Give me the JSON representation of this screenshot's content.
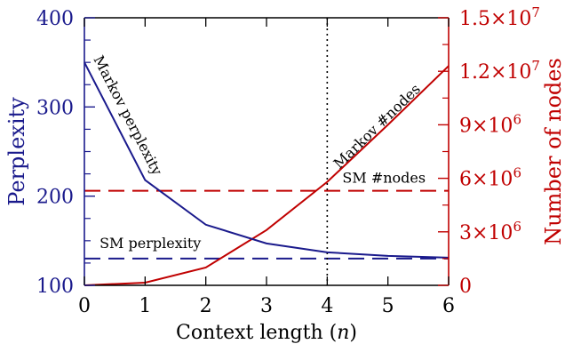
{
  "chart_data": {
    "type": "line",
    "xlabel": "Context length (n)",
    "x_ticks": [
      0,
      1,
      2,
      3,
      4,
      5,
      6
    ],
    "xlim": [
      0,
      6
    ],
    "left_axis": {
      "label": "Perplexity",
      "ylim": [
        100,
        400
      ],
      "ticks": [
        100,
        200,
        300,
        400
      ],
      "color": "#1a1a8c"
    },
    "right_axis": {
      "label": "Number of nodes",
      "ylim": [
        0,
        15000000
      ],
      "ticks": [
        {
          "value": 0,
          "mant": "0",
          "exp": ""
        },
        {
          "value": 3000000,
          "mant": "3×10",
          "exp": "6"
        },
        {
          "value": 6000000,
          "mant": "6×10",
          "exp": "6"
        },
        {
          "value": 9000000,
          "mant": "9×10",
          "exp": "6"
        },
        {
          "value": 12000000,
          "mant": "1.2×10",
          "exp": "7"
        },
        {
          "value": 15000000,
          "mant": "1.5×10",
          "exp": "7"
        }
      ],
      "color": "#c00000"
    },
    "series": [
      {
        "name": "Markov perplexity",
        "axis": "left",
        "style": "solid",
        "color": "#1a1a8c",
        "x": [
          0,
          1,
          2,
          3,
          4,
          5,
          6
        ],
        "y": [
          350,
          218,
          168,
          147,
          137,
          133,
          131
        ]
      },
      {
        "name": "Markov #nodes",
        "axis": "right",
        "style": "solid",
        "color": "#c00000",
        "x": [
          0,
          1,
          2,
          3,
          4,
          5,
          6
        ],
        "y": [
          0,
          150000,
          1000000,
          3100000,
          5800000,
          9000000,
          12300000
        ]
      },
      {
        "name": "SM perplexity",
        "axis": "left",
        "style": "dashed",
        "color": "#1a1a8c",
        "constant": 130
      },
      {
        "name": "SM #nodes",
        "axis": "right",
        "style": "dashed",
        "color": "#c00000",
        "constant": 5300000
      }
    ],
    "vline": {
      "x": 4,
      "style": "dotted"
    },
    "annotations": [
      {
        "text": "Markov perplexity",
        "series": "Markov perplexity"
      },
      {
        "text": "Markov #nodes",
        "series": "Markov #nodes"
      },
      {
        "text": "SM perplexity",
        "series": "SM perplexity"
      },
      {
        "text": "SM #nodes",
        "series": "SM #nodes"
      }
    ]
  }
}
